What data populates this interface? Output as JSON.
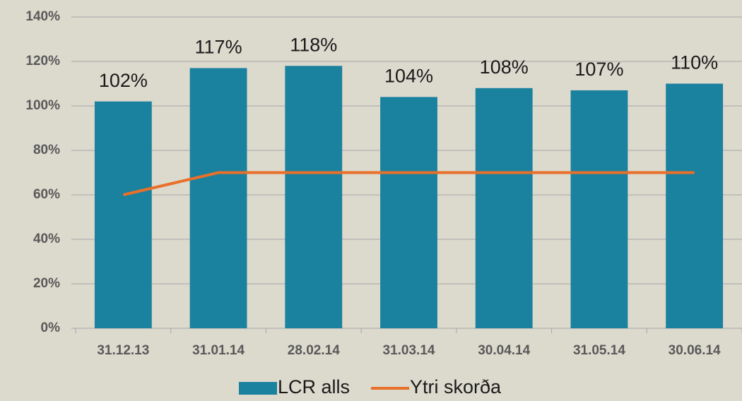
{
  "chart_data": {
    "type": "combo",
    "categories": [
      "31.12.13",
      "31.01.14",
      "28.02.14",
      "31.03.14",
      "30.04.14",
      "31.05.14",
      "30.06.14"
    ],
    "series": [
      {
        "name": "LCR alls",
        "type": "bar",
        "color": "#1a819e",
        "values": [
          102,
          117,
          118,
          104,
          108,
          107,
          110
        ],
        "value_labels": [
          "102%",
          "117%",
          "118%",
          "104%",
          "108%",
          "107%",
          "110%"
        ]
      },
      {
        "name": "Ytri skorða",
        "type": "line",
        "color": "#e8702a",
        "values": [
          60,
          70,
          70,
          70,
          70,
          70,
          70
        ]
      }
    ],
    "ylim": [
      0,
      140
    ],
    "yticks": [
      {
        "value": 0,
        "label": "0%"
      },
      {
        "value": 20,
        "label": "20%"
      },
      {
        "value": 40,
        "label": "40%"
      },
      {
        "value": 60,
        "label": "60%"
      },
      {
        "value": 80,
        "label": "80%"
      },
      {
        "value": 100,
        "label": "100%"
      },
      {
        "value": 120,
        "label": "120%"
      },
      {
        "value": 140,
        "label": "140%"
      }
    ],
    "grid": true,
    "legend": "bottom"
  }
}
